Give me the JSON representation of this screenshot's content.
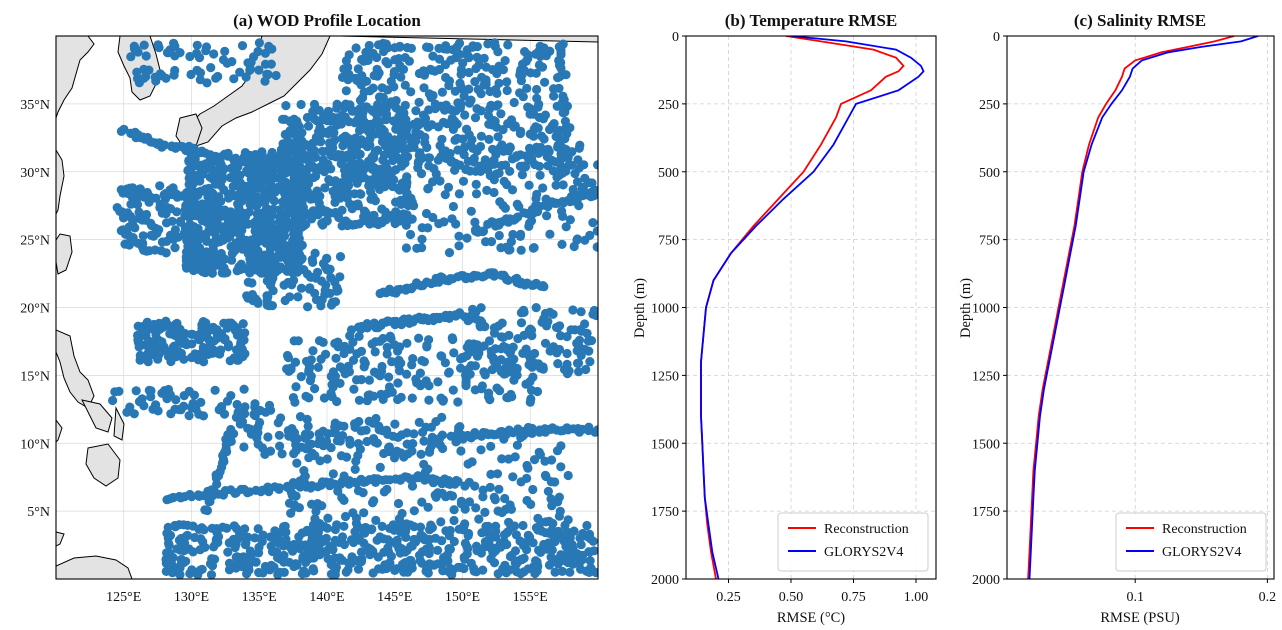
{
  "chart_data": [
    {
      "type": "scatter",
      "title": "(a) WOD Profile Location",
      "xlabel": "",
      "ylabel": "",
      "xlim": [
        120,
        160
      ],
      "ylim": [
        0,
        40
      ],
      "x_ticks": [
        125,
        130,
        135,
        140,
        145,
        150,
        155
      ],
      "x_tick_labels": [
        "125°E",
        "130°E",
        "135°E",
        "140°E",
        "145°E",
        "150°E",
        "155°E"
      ],
      "y_ticks": [
        5,
        10,
        15,
        20,
        25,
        30,
        35
      ],
      "y_tick_labels": [
        "5°N",
        "10°N",
        "15°N",
        "20°N",
        "25°N",
        "30°N",
        "35°N"
      ],
      "grid": true,
      "point_color": "#2878b5",
      "land_color": "#e3e3e3",
      "clusters": [
        {
          "lon": [
            129.5,
            138.5
          ],
          "lat": [
            22.5,
            31.5
          ],
          "n": 650
        },
        {
          "lon": [
            136.5,
            146
          ],
          "lat": [
            26,
            35
          ],
          "n": 420
        },
        {
          "lon": [
            141,
            158
          ],
          "lat": [
            30,
            39.5
          ],
          "n": 420
        },
        {
          "lon": [
            125.5,
            136.5
          ],
          "lat": [
            36.5,
            39.5
          ],
          "n": 70
        },
        {
          "lon": [
            124.5,
            130.5
          ],
          "lat": [
            24,
            29
          ],
          "n": 110
        },
        {
          "lon": [
            145,
            160
          ],
          "lat": [
            24,
            32
          ],
          "n": 170
        },
        {
          "lon": [
            126,
            134
          ],
          "lat": [
            16,
            19
          ],
          "n": 170
        },
        {
          "lon": [
            134,
            141
          ],
          "lat": [
            20,
            24
          ],
          "n": 80
        },
        {
          "lon": [
            137,
            156
          ],
          "lat": [
            13,
            18
          ],
          "n": 200
        },
        {
          "lon": [
            150,
            160
          ],
          "lat": [
            15,
            20
          ],
          "n": 110
        },
        {
          "lon": [
            128,
            160
          ],
          "lat": [
            0.3,
            4
          ],
          "n": 520
        },
        {
          "lon": [
            137,
            158
          ],
          "lat": [
            4,
            11
          ],
          "n": 200
        },
        {
          "lon": [
            124,
            136
          ],
          "lat": [
            12,
            14
          ],
          "n": 60
        },
        {
          "lon": [
            132,
            150
          ],
          "lat": [
            9,
            12
          ],
          "n": 90
        }
      ],
      "tracks": [
        {
          "points": [
            [
              144,
              21
            ],
            [
              148,
              22
            ],
            [
              152,
              22.5
            ],
            [
              156,
              21.5
            ]
          ],
          "n": 70
        },
        {
          "points": [
            [
              142,
              18.5
            ],
            [
              146,
              19
            ],
            [
              150,
              19.5
            ]
          ],
          "n": 50
        },
        {
          "points": [
            [
              128,
              6
            ],
            [
              134,
              6.5
            ],
            [
              140,
              7
            ],
            [
              146,
              7.5
            ],
            [
              150,
              7
            ]
          ],
          "n": 90
        },
        {
          "points": [
            [
              150,
              10.5
            ],
            [
              155,
              11
            ],
            [
              160,
              11
            ]
          ],
          "n": 50
        },
        {
          "points": [
            [
              131,
              5
            ],
            [
              132,
              8
            ],
            [
              133,
              11
            ]
          ],
          "n": 25
        },
        {
          "points": [
            [
              125,
              33
            ],
            [
              128,
              32
            ],
            [
              131,
              31.5
            ]
          ],
          "n": 35
        },
        {
          "points": [
            [
              152,
              26
            ],
            [
              155,
              27
            ],
            [
              158,
              28
            ],
            [
              160,
              28.5
            ]
          ],
          "n": 45
        }
      ]
    },
    {
      "type": "line",
      "title": "(b) Temperature RMSE",
      "xlabel": "RMSE (°C)",
      "ylabel": "Depth (m)",
      "xlim": [
        0.08,
        1.08
      ],
      "ylim": [
        2000,
        0
      ],
      "x_ticks": [
        0.25,
        0.5,
        0.75,
        1.0
      ],
      "x_tick_labels": [
        "0.25",
        "0.50",
        "0.75",
        "1.00"
      ],
      "y_ticks": [
        0,
        250,
        500,
        750,
        1000,
        1250,
        1500,
        1750,
        2000
      ],
      "grid": true,
      "legend": "lower-right",
      "series": [
        {
          "name": "Reconstruction",
          "color": "#ff0000",
          "depth": [
            0,
            20,
            50,
            80,
            110,
            130,
            150,
            200,
            250,
            300,
            400,
            500,
            600,
            700,
            800,
            900,
            1000,
            1100,
            1200,
            1300,
            1400,
            1500,
            1600,
            1700,
            1800,
            1900,
            2000
          ],
          "values": [
            0.48,
            0.62,
            0.83,
            0.92,
            0.95,
            0.93,
            0.88,
            0.82,
            0.7,
            0.68,
            0.62,
            0.55,
            0.45,
            0.35,
            0.26,
            0.19,
            0.16,
            0.15,
            0.14,
            0.14,
            0.14,
            0.145,
            0.15,
            0.155,
            0.165,
            0.18,
            0.2
          ]
        },
        {
          "name": "GLORYS2V4",
          "color": "#0000ff",
          "depth": [
            0,
            20,
            50,
            80,
            110,
            130,
            150,
            200,
            250,
            300,
            400,
            500,
            600,
            700,
            800,
            900,
            1000,
            1100,
            1200,
            1300,
            1400,
            1500,
            1600,
            1700,
            1800,
            1900,
            2000
          ],
          "values": [
            0.5,
            0.72,
            0.92,
            0.98,
            1.02,
            1.03,
            1.01,
            0.93,
            0.76,
            0.73,
            0.67,
            0.59,
            0.47,
            0.36,
            0.26,
            0.19,
            0.16,
            0.15,
            0.14,
            0.14,
            0.14,
            0.145,
            0.15,
            0.155,
            0.17,
            0.185,
            0.21
          ]
        }
      ]
    },
    {
      "type": "line",
      "title": "(c) Salinity RMSE",
      "xlabel": "RMSE (PSU)",
      "ylabel": "Depth (m)",
      "xlim": [
        0.003,
        0.205
      ],
      "ylim": [
        2000,
        0
      ],
      "x_ticks": [
        0.1,
        0.2
      ],
      "x_tick_labels": [
        "0.1",
        "0.2"
      ],
      "y_ticks": [
        0,
        250,
        500,
        750,
        1000,
        1250,
        1500,
        1750,
        2000
      ],
      "grid": true,
      "legend": "lower-right",
      "series": [
        {
          "name": "Reconstruction",
          "color": "#ff0000",
          "depth": [
            0,
            20,
            40,
            60,
            90,
            120,
            150,
            200,
            250,
            300,
            400,
            500,
            600,
            700,
            800,
            900,
            1000,
            1100,
            1200,
            1300,
            1400,
            1500,
            1600,
            1700,
            1800,
            1900,
            2000
          ],
          "values": [
            0.175,
            0.16,
            0.14,
            0.12,
            0.1,
            0.092,
            0.09,
            0.085,
            0.078,
            0.072,
            0.065,
            0.06,
            0.057,
            0.054,
            0.05,
            0.046,
            0.042,
            0.038,
            0.034,
            0.03,
            0.027,
            0.025,
            0.023,
            0.022,
            0.021,
            0.02,
            0.019
          ]
        },
        {
          "name": "GLORYS2V4",
          "color": "#0000ff",
          "depth": [
            0,
            20,
            40,
            60,
            90,
            120,
            150,
            200,
            250,
            300,
            400,
            500,
            600,
            700,
            800,
            900,
            1000,
            1100,
            1200,
            1300,
            1400,
            1500,
            1600,
            1700,
            1800,
            1900,
            2000
          ],
          "values": [
            0.193,
            0.18,
            0.15,
            0.125,
            0.105,
            0.098,
            0.096,
            0.09,
            0.082,
            0.075,
            0.067,
            0.061,
            0.058,
            0.055,
            0.051,
            0.047,
            0.043,
            0.039,
            0.035,
            0.031,
            0.028,
            0.026,
            0.024,
            0.023,
            0.022,
            0.021,
            0.02
          ]
        }
      ]
    }
  ]
}
